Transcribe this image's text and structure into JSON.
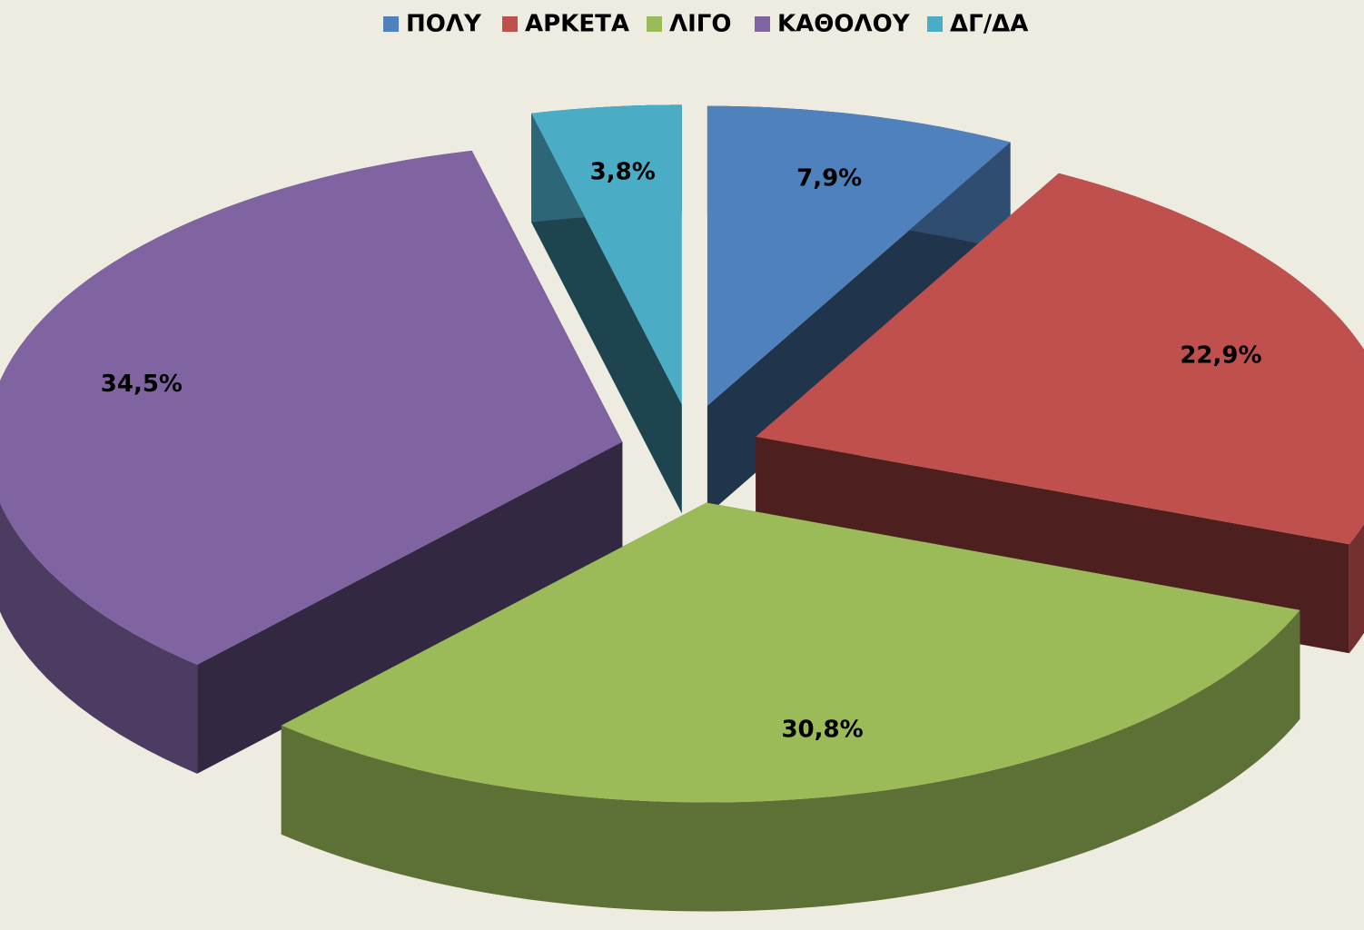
{
  "chart_data": {
    "type": "pie",
    "categories": [
      "ΠΟΛΥ",
      "ΑΡΚΕΤΑ",
      "ΛΙΓΟ",
      "ΚΑΘΟΛΟΥ",
      "ΔΓ/ΔΑ"
    ],
    "values": [
      7.9,
      22.9,
      30.8,
      34.5,
      3.8
    ],
    "value_labels": [
      "7,9%",
      "22,9%",
      "30,8%",
      "34,5%",
      "3,8%"
    ],
    "colors": [
      "#4f81bd",
      "#c0504d",
      "#9bbb59",
      "#8064a2",
      "#4bacc6"
    ],
    "legend": "top"
  }
}
